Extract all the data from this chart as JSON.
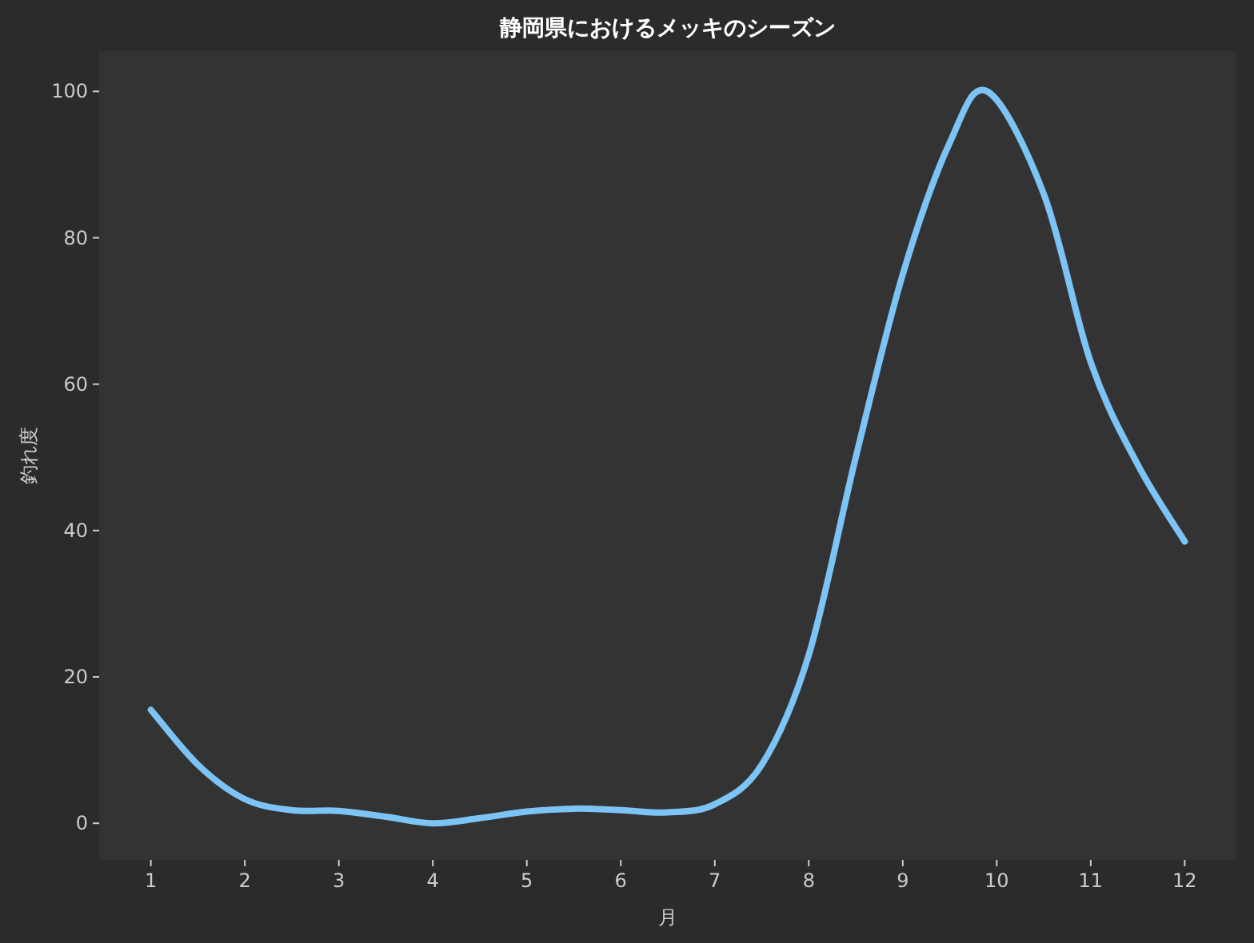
{
  "chart_data": {
    "type": "line",
    "title": "静岡県におけるメッキのシーズン",
    "xlabel": "月",
    "ylabel": "釣れ度",
    "x": [
      1,
      1.5,
      2,
      2.5,
      3,
      3.5,
      4,
      4.5,
      5,
      5.5,
      6,
      6.5,
      7,
      7.5,
      8,
      8.5,
      9,
      9.5,
      9.9,
      10.5,
      11,
      11.5,
      12
    ],
    "series": [
      {
        "color": "#7cc4f5",
        "values": [
          15.5,
          8,
          3.3,
          1.8,
          1.7,
          0.9,
          0,
          0.7,
          1.6,
          2,
          1.8,
          1.5,
          2.6,
          8,
          23,
          50,
          75,
          93,
          100,
          86,
          63,
          49,
          38.5
        ]
      }
    ],
    "xlim": [
      0.45,
      12.55
    ],
    "ylim": [
      -5,
      105.5
    ],
    "xticks": [
      1,
      2,
      3,
      4,
      5,
      6,
      7,
      8,
      9,
      10,
      11,
      12
    ],
    "yticks": [
      0,
      20,
      40,
      60,
      80,
      100
    ],
    "marker": "none",
    "line_style": "solid"
  }
}
